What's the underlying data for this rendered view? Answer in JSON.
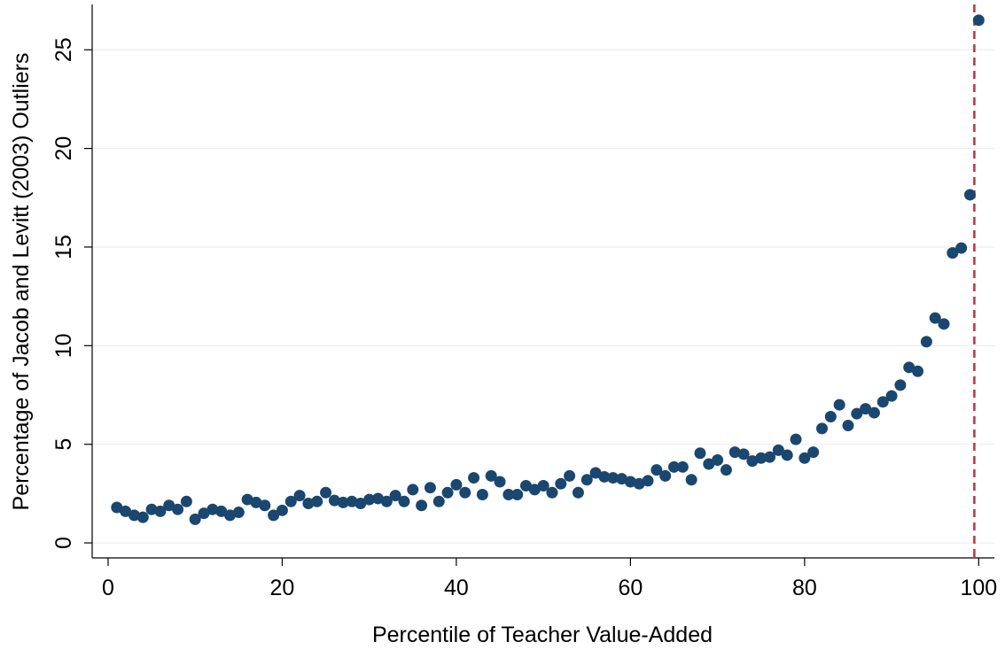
{
  "chart_data": {
    "type": "scatter",
    "xlabel": "Percentile of Teacher Value-Added",
    "ylabel": "Percentage of Jacob and Levitt (2003) Outliers",
    "x": [
      1,
      2,
      3,
      4,
      5,
      6,
      7,
      8,
      9,
      10,
      11,
      12,
      13,
      14,
      15,
      16,
      17,
      18,
      19,
      20,
      21,
      22,
      23,
      24,
      25,
      26,
      27,
      28,
      29,
      30,
      31,
      32,
      33,
      34,
      35,
      36,
      37,
      38,
      39,
      40,
      41,
      42,
      43,
      44,
      45,
      46,
      47,
      48,
      49,
      50,
      51,
      52,
      53,
      54,
      55,
      56,
      57,
      58,
      59,
      60,
      61,
      62,
      63,
      64,
      65,
      66,
      67,
      68,
      69,
      70,
      71,
      72,
      73,
      74,
      75,
      76,
      77,
      78,
      79,
      80,
      81,
      82,
      83,
      84,
      85,
      86,
      87,
      88,
      89,
      90,
      91,
      92,
      93,
      94,
      95,
      96,
      97,
      98,
      99,
      100
    ],
    "values": [
      1.8,
      1.6,
      1.4,
      1.3,
      1.7,
      1.6,
      1.9,
      1.7,
      2.1,
      1.2,
      1.5,
      1.7,
      1.6,
      1.4,
      1.55,
      2.2,
      2.05,
      1.9,
      1.4,
      1.65,
      2.1,
      2.4,
      2.0,
      2.1,
      2.55,
      2.15,
      2.05,
      2.1,
      2.0,
      2.2,
      2.25,
      2.1,
      2.4,
      2.1,
      2.7,
      1.9,
      2.8,
      2.1,
      2.55,
      2.95,
      2.55,
      3.3,
      2.45,
      3.4,
      3.1,
      2.45,
      2.45,
      2.9,
      2.7,
      2.9,
      2.55,
      3.0,
      3.4,
      2.55,
      3.2,
      3.55,
      3.35,
      3.3,
      3.25,
      3.1,
      3.0,
      3.15,
      3.7,
      3.4,
      3.85,
      3.85,
      3.2,
      4.55,
      4.0,
      4.2,
      3.7,
      4.6,
      4.5,
      4.15,
      4.3,
      4.35,
      4.7,
      4.45,
      5.25,
      4.3,
      4.6,
      5.8,
      6.4,
      7.0,
      5.95,
      6.55,
      6.8,
      6.6,
      7.15,
      7.45,
      8.0,
      8.9,
      8.7,
      10.2,
      11.4,
      11.1,
      14.7,
      14.95,
      17.65,
      26.5
    ],
    "color": "#1a476f",
    "vline": 99.5,
    "vline_color": "#c0303a",
    "xlim": [
      -1.83,
      101.8
    ],
    "xticks": [
      0,
      20,
      40,
      60,
      80,
      100
    ],
    "ylim": [
      -0.76,
      27.3
    ],
    "yticks": [
      0,
      5,
      10,
      15,
      20,
      25
    ],
    "grid": true
  }
}
